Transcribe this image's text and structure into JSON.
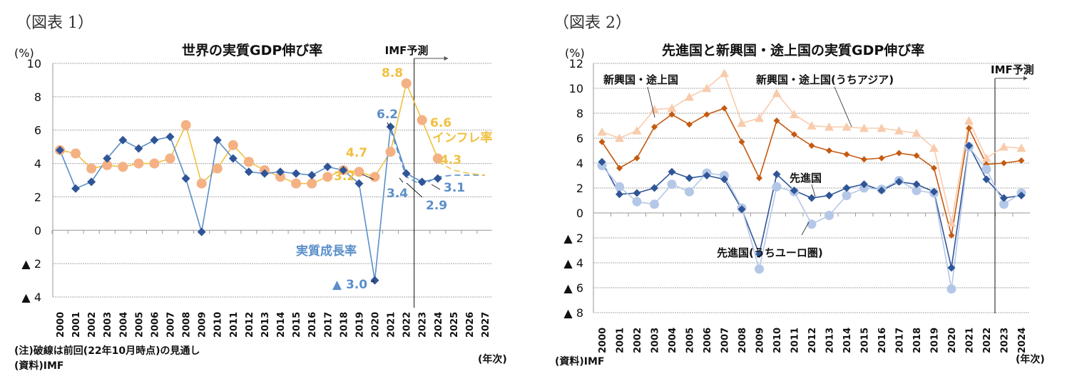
{
  "chart_data": [
    {
      "type": "line",
      "figure_label": "（図表 1）",
      "title": "世界の実質GDP伸び率",
      "ylabel": "(%)",
      "xlabel": "(年次)",
      "ylim": [
        -4,
        10
      ],
      "yticks": [
        10,
        8,
        6,
        4,
        2,
        0,
        -2,
        -4
      ],
      "ytick_labels": [
        "10",
        "8",
        "6",
        "4",
        "2",
        "0",
        "▲ 2",
        "▲ 4"
      ],
      "grid": true,
      "x": [
        "2000",
        "2001",
        "2002",
        "2003",
        "2004",
        "2005",
        "2006",
        "2007",
        "2008",
        "2009",
        "2010",
        "2011",
        "2012",
        "2013",
        "2014",
        "2015",
        "2016",
        "2017",
        "2018",
        "2019",
        "2020",
        "2021",
        "2022",
        "2023",
        "2024",
        "2025",
        "2026",
        "2027"
      ],
      "forecast_marker": {
        "label": "IMF予測",
        "after": "2022"
      },
      "series": [
        {
          "name": "実質成長率",
          "color": "#2f5597",
          "line_color": "#5b8fc9",
          "marker": "diamond",
          "values": [
            4.8,
            2.5,
            2.9,
            4.3,
            5.4,
            4.9,
            5.4,
            5.6,
            3.1,
            -0.1,
            5.4,
            4.3,
            3.5,
            3.4,
            3.5,
            3.4,
            3.3,
            3.8,
            3.6,
            2.8,
            -3.0,
            6.2,
            3.4,
            2.9,
            3.1,
            null,
            null,
            null
          ]
        },
        {
          "name": "インフレ率",
          "color": "#f4b183",
          "line_color": "#f0c040",
          "marker": "circle",
          "values": [
            4.8,
            4.6,
            3.7,
            3.9,
            3.8,
            4.0,
            4.0,
            4.3,
            6.3,
            2.8,
            3.7,
            5.1,
            4.1,
            3.6,
            3.2,
            2.8,
            2.8,
            3.2,
            3.6,
            3.5,
            3.2,
            4.7,
            8.8,
            6.6,
            4.3,
            null,
            null,
            null
          ]
        },
        {
          "name": "実質成長率(前回見通し)",
          "color": "#5b8fc9",
          "dashed": true,
          "values": [
            null,
            null,
            null,
            null,
            null,
            null,
            null,
            null,
            null,
            null,
            null,
            null,
            null,
            null,
            null,
            null,
            null,
            null,
            null,
            null,
            null,
            6.0,
            3.2,
            2.7,
            3.2,
            3.3,
            3.3,
            3.3
          ]
        },
        {
          "name": "インフレ率(前回見通し)",
          "color": "#f0c040",
          "dashed": true,
          "values": [
            null,
            null,
            null,
            null,
            null,
            null,
            null,
            null,
            null,
            null,
            null,
            null,
            null,
            null,
            null,
            null,
            null,
            null,
            null,
            null,
            null,
            null,
            null,
            null,
            4.1,
            3.6,
            3.4,
            3.3
          ]
        }
      ],
      "annotations": [
        {
          "text": "8.8",
          "series": 1,
          "x": "2022",
          "color": "#f0c040"
        },
        {
          "text": "6.6",
          "series": 1,
          "x": "2023",
          "color": "#f0c040"
        },
        {
          "text": "4.3",
          "series": 1,
          "x": "2024",
          "color": "#f0c040"
        },
        {
          "text": "4.7",
          "series": 1,
          "x": "2021",
          "color": "#f0c040"
        },
        {
          "text": "3.2",
          "series": 1,
          "x": "2020",
          "color": "#f0c040"
        },
        {
          "text": "6.2",
          "series": 0,
          "x": "2021",
          "color": "#5b8fc9"
        },
        {
          "text": "3.4",
          "series": 0,
          "x": "2022",
          "color": "#5b8fc9"
        },
        {
          "text": "2.9",
          "series": 0,
          "x": "2023",
          "color": "#5b8fc9"
        },
        {
          "text": "3.1",
          "series": 0,
          "x": "2024",
          "color": "#5b8fc9"
        },
        {
          "text": "▲ 3.0",
          "series": 0,
          "x": "2020",
          "color": "#5b8fc9"
        },
        {
          "text": "インフレ率",
          "color": "#f0c040"
        },
        {
          "text": "実質成長率",
          "color": "#5b8fc9"
        }
      ],
      "notes": [
        "(注)破線は前回(22年10月時点)の見通し",
        "(資料)IMF"
      ]
    },
    {
      "type": "line",
      "figure_label": "（図表 2）",
      "title": "先進国と新興国・途上国の実質GDP伸び率",
      "ylabel": "(%)",
      "xlabel": "(年次)",
      "ylim": [
        -8,
        12
      ],
      "yticks": [
        12,
        10,
        8,
        6,
        4,
        2,
        0,
        -2,
        -4,
        -6,
        -8
      ],
      "ytick_labels": [
        "12",
        "10",
        "8",
        "6",
        "4",
        "2",
        "0",
        "▲ 2",
        "▲ 4",
        "▲ 6",
        "▲ 8"
      ],
      "grid": true,
      "x": [
        "2000",
        "2001",
        "2002",
        "2003",
        "2004",
        "2005",
        "2006",
        "2007",
        "2008",
        "2009",
        "2010",
        "2011",
        "2012",
        "2013",
        "2014",
        "2015",
        "2016",
        "2017",
        "2018",
        "2019",
        "2020",
        "2021",
        "2022",
        "2023",
        "2024"
      ],
      "forecast_marker": {
        "label": "IMF予測",
        "after": "2022"
      },
      "series": [
        {
          "name": "新興国・途上国(うちアジア)",
          "color": "#f8cbad",
          "marker": "triangle",
          "values": [
            6.5,
            6.0,
            6.6,
            8.3,
            8.4,
            9.3,
            10.0,
            11.2,
            7.2,
            7.6,
            9.6,
            7.9,
            7.0,
            6.9,
            6.9,
            6.8,
            6.8,
            6.6,
            6.4,
            5.2,
            -0.8,
            7.4,
            4.4,
            5.3,
            5.2
          ]
        },
        {
          "name": "新興国・途上国",
          "color": "#c55a11",
          "marker": "diamond",
          "values": [
            5.7,
            3.6,
            4.4,
            6.9,
            7.9,
            7.1,
            7.9,
            8.4,
            5.7,
            2.8,
            7.4,
            6.3,
            5.4,
            5.0,
            4.7,
            4.3,
            4.4,
            4.8,
            4.6,
            3.6,
            -1.8,
            6.8,
            3.9,
            4.0,
            4.2
          ]
        },
        {
          "name": "先進国",
          "color": "#2f5597",
          "marker": "diamond",
          "values": [
            4.1,
            1.5,
            1.6,
            2.0,
            3.3,
            2.8,
            3.0,
            2.7,
            0.3,
            -3.3,
            3.1,
            1.8,
            1.2,
            1.4,
            2.0,
            2.3,
            1.8,
            2.5,
            2.3,
            1.7,
            -4.4,
            5.4,
            2.7,
            1.2,
            1.4
          ]
        },
        {
          "name": "先進国(うちユーロ圏)",
          "color": "#b4c7e7",
          "marker": "circle",
          "values": [
            3.8,
            2.1,
            0.9,
            0.7,
            2.3,
            1.7,
            3.2,
            3.0,
            0.4,
            -4.5,
            2.1,
            1.7,
            -0.9,
            -0.2,
            1.4,
            2.0,
            1.9,
            2.6,
            1.8,
            1.6,
            -6.1,
            5.3,
            3.5,
            0.7,
            1.6
          ]
        }
      ],
      "labels": [
        "新興国・途上国",
        "新興国・途上国(うちアジア)",
        "先進国",
        "先進国(うちユーロ圏)"
      ],
      "notes": [
        "(資料)IMF"
      ]
    }
  ]
}
